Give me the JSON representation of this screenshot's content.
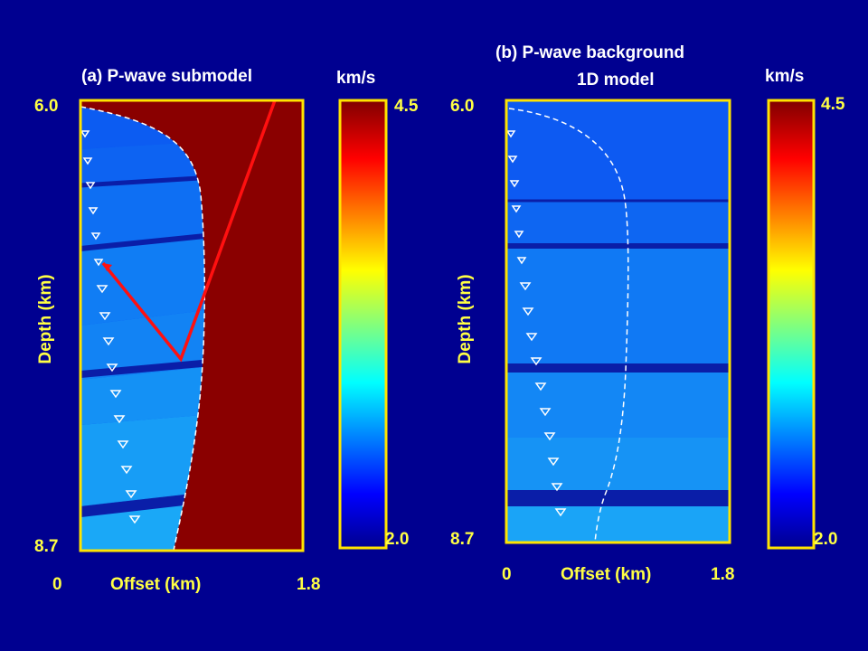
{
  "panel_a": {
    "title": "(a) P-wave submodel",
    "depth_top": "6.0",
    "depth_bottom": "8.7",
    "offset_min": "0",
    "offset_max": "1.8",
    "xlabel": "Offset (km)",
    "ylabel": "Depth (km)"
  },
  "panel_b": {
    "title_line1": "(b) P-wave background",
    "title_line2": "1D model",
    "depth_top": "6.0",
    "depth_bottom": "8.7",
    "offset_min": "0",
    "offset_max": "1.8",
    "xlabel": "Offset (km)",
    "ylabel": "Depth (km)"
  },
  "colorbar_a": {
    "unit": "km/s",
    "max": "4.5",
    "min": "2.0"
  },
  "colorbar_b": {
    "unit": "km/s",
    "max": "4.5",
    "min": "2.0"
  },
  "colors": {
    "background": "#000090",
    "frame": "#ffe400",
    "salt": "#8a0000",
    "ray": "#ff1010"
  }
}
